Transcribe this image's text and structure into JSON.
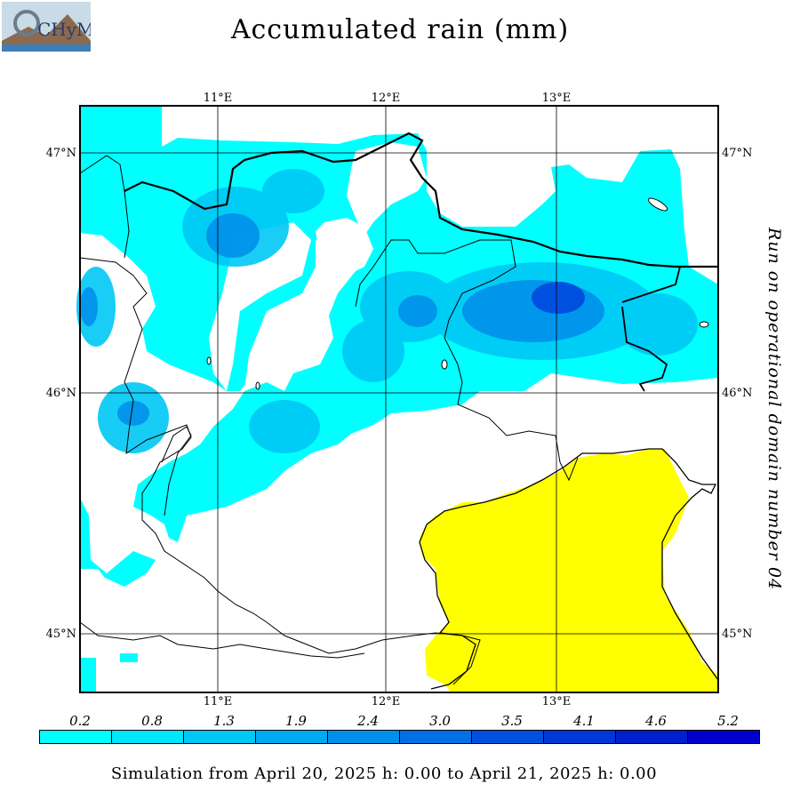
{
  "title": "Accumulated rain (mm)",
  "side_caption": "Run on operational domain number 04",
  "footer": "Simulation from April 20, 2025 h: 0.00 to April 21, 2025 h: 0.00",
  "logo_text": "CHyM",
  "lon_labels": [
    "11°E",
    "12°E",
    "13°E"
  ],
  "lat_labels": [
    "47°N",
    "46°N",
    "45°N"
  ],
  "legend": {
    "values": [
      "0.2",
      "0.8",
      "1.3",
      "1.9",
      "2.4",
      "3.0",
      "3.5",
      "4.1",
      "4.6",
      "5.2"
    ],
    "colors": [
      "#00ffff",
      "#00e6fa",
      "#00c8f5",
      "#00aaf0",
      "#0090eb",
      "#0070e6",
      "#0050e0",
      "#0038d8",
      "#0020d0",
      "#0000cc"
    ]
  },
  "sea_color": "#ffff00"
}
